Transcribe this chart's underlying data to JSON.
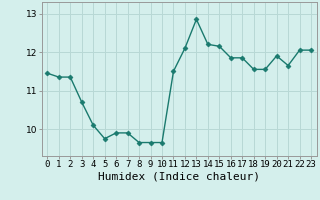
{
  "x": [
    0,
    1,
    2,
    3,
    4,
    5,
    6,
    7,
    8,
    9,
    10,
    11,
    12,
    13,
    14,
    15,
    16,
    17,
    18,
    19,
    20,
    21,
    22,
    23
  ],
  "y": [
    11.45,
    11.35,
    11.35,
    10.7,
    10.1,
    9.75,
    9.9,
    9.9,
    9.65,
    9.65,
    9.65,
    11.5,
    12.1,
    12.85,
    12.2,
    12.15,
    11.85,
    11.85,
    11.55,
    11.55,
    11.9,
    11.65,
    12.05,
    12.05
  ],
  "line_color": "#1a7a6e",
  "marker": "D",
  "markersize": 2.5,
  "linewidth": 1.0,
  "bg_color": "#d4efec",
  "grid_color": "#b8d8d5",
  "xlabel": "Humidex (Indice chaleur)",
  "ylim": [
    9.3,
    13.3
  ],
  "yticks": [
    10,
    11,
    12,
    13
  ],
  "tick_fontsize": 6.5,
  "xlabel_fontsize": 8.0,
  "xlabel_fontfamily": "monospace"
}
